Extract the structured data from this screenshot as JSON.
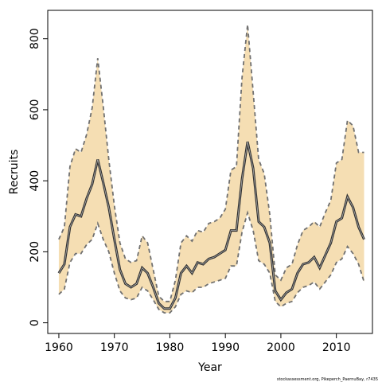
{
  "chart_data": {
    "type": "area",
    "xlabel": "Year",
    "ylabel": "Recruits",
    "xlim": [
      1958,
      2016.5
    ],
    "ylim": [
      -30,
      880
    ],
    "xticks": [
      "1960",
      "1970",
      "1980",
      "1990",
      "2000",
      "2010"
    ],
    "yticks": [
      "0",
      "200",
      "400",
      "600",
      "800"
    ],
    "grid": false,
    "legend": "none",
    "credit": "stockassessment.org, Pikeperch_PaernuBay, r7435",
    "colors": {
      "band": "#f5deb3",
      "bound_line": "#707070",
      "estimate_line": "#333333"
    },
    "x": [
      1960,
      1961,
      1962,
      1963,
      1964,
      1965,
      1966,
      1967,
      1968,
      1969,
      1970,
      1971,
      1972,
      1973,
      1974,
      1975,
      1976,
      1977,
      1978,
      1979,
      1980,
      1981,
      1982,
      1983,
      1984,
      1985,
      1986,
      1987,
      1988,
      1989,
      1990,
      1991,
      1992,
      1993,
      1994,
      1995,
      1996,
      1997,
      1998,
      1999,
      2000,
      2001,
      2002,
      2003,
      2004,
      2005,
      2006,
      2007,
      2008,
      2009,
      2010,
      2011,
      2012,
      2013,
      2014,
      2015
    ],
    "series": [
      {
        "role": "upper",
        "values": [
          235,
          270,
          440,
          490,
          480,
          530,
          605,
          745,
          610,
          460,
          330,
          225,
          180,
          170,
          175,
          245,
          225,
          150,
          75,
          60,
          60,
          120,
          225,
          245,
          230,
          260,
          255,
          280,
          285,
          295,
          320,
          430,
          440,
          690,
          840,
          650,
          460,
          420,
          305,
          135,
          120,
          155,
          165,
          220,
          260,
          270,
          285,
          270,
          310,
          345,
          450,
          460,
          570,
          555,
          480,
          480
        ]
      },
      {
        "role": "estimate",
        "values": [
          140,
          165,
          270,
          305,
          300,
          350,
          390,
          460,
          395,
          325,
          235,
          150,
          110,
          100,
          110,
          155,
          140,
          100,
          55,
          40,
          40,
          70,
          140,
          160,
          140,
          170,
          165,
          180,
          185,
          195,
          205,
          260,
          260,
          405,
          510,
          435,
          285,
          270,
          225,
          90,
          65,
          85,
          95,
          140,
          165,
          170,
          185,
          155,
          190,
          225,
          285,
          295,
          355,
          325,
          270,
          235
        ]
      },
      {
        "role": "lower",
        "values": [
          80,
          95,
          170,
          195,
          195,
          220,
          235,
          280,
          235,
          200,
          140,
          90,
          70,
          65,
          70,
          100,
          90,
          65,
          38,
          28,
          28,
          45,
          80,
          90,
          85,
          100,
          100,
          110,
          115,
          120,
          125,
          160,
          160,
          255,
          310,
          260,
          175,
          165,
          140,
          60,
          45,
          55,
          60,
          85,
          100,
          105,
          115,
          95,
          115,
          135,
          170,
          180,
          215,
          195,
          165,
          115
        ]
      }
    ]
  }
}
